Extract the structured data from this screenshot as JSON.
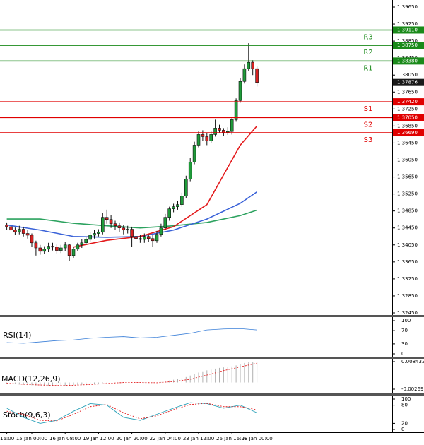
{
  "chart_data": {
    "type": "candlestick",
    "categories": [
      "16:00",
      null,
      null,
      null,
      null,
      null,
      "15 Jan 00:00",
      null,
      null,
      null,
      null,
      null,
      null,
      null,
      "16 Jan 08:00",
      null,
      null,
      null,
      null,
      null,
      null,
      null,
      "19 Jan 12:00",
      null,
      null,
      null,
      null,
      null,
      null,
      null,
      "20 Jan 20:00",
      null,
      null,
      null,
      null,
      null,
      null,
      null,
      "22 Jan 04:00",
      null,
      null,
      null,
      null,
      null,
      null,
      null,
      "23 Jan 12:00",
      null,
      null,
      null,
      null,
      null,
      null,
      null,
      "26 Jan 16:00",
      null,
      null,
      null,
      null,
      null,
      "28 Jan 00:00"
    ],
    "open": [
      1.3452,
      1.3448,
      1.344,
      1.3436,
      1.3442,
      1.3432,
      1.3428,
      1.341,
      1.3398,
      1.339,
      1.3395,
      1.3402,
      1.34,
      1.3392,
      1.3398,
      1.3405,
      1.338,
      1.3395,
      1.3405,
      1.341,
      1.3418,
      1.3428,
      1.3432,
      1.3435,
      1.347,
      1.3465,
      1.3455,
      1.345,
      1.3445,
      1.344,
      1.3442,
      1.3425,
      1.342,
      1.3418,
      1.3425,
      1.342,
      1.3415,
      1.343,
      1.3445,
      1.347,
      1.349,
      1.3495,
      1.35,
      1.352,
      1.356,
      1.36,
      1.364,
      1.3665,
      1.366,
      1.365,
      1.3665,
      1.368,
      1.3675,
      1.367,
      1.3672,
      1.37,
      1.3745,
      1.379,
      1.382,
      1.3835,
      1.382
    ],
    "high": [
      1.3458,
      1.3452,
      1.3446,
      1.345,
      1.3448,
      1.344,
      1.3432,
      1.3415,
      1.3405,
      1.3402,
      1.341,
      1.341,
      1.3406,
      1.3405,
      1.3412,
      1.3408,
      1.34,
      1.341,
      1.3418,
      1.3425,
      1.3435,
      1.344,
      1.3442,
      1.348,
      1.3488,
      1.3475,
      1.3462,
      1.3458,
      1.3452,
      1.345,
      1.3448,
      1.3432,
      1.3428,
      1.3432,
      1.343,
      1.3428,
      1.3438,
      1.3455,
      1.3478,
      1.3495,
      1.3502,
      1.3508,
      1.3528,
      1.3568,
      1.361,
      1.3648,
      1.3672,
      1.3675,
      1.3668,
      1.3672,
      1.37,
      1.3688,
      1.368,
      1.3682,
      1.3705,
      1.375,
      1.3798,
      1.383,
      1.388,
      1.384,
      1.3825
    ],
    "low": [
      1.344,
      1.3432,
      1.3428,
      1.343,
      1.3425,
      1.342,
      1.34,
      1.338,
      1.3382,
      1.3384,
      1.3388,
      1.3392,
      1.3385,
      1.3386,
      1.339,
      1.3368,
      1.3375,
      1.339,
      1.3398,
      1.3405,
      1.3412,
      1.342,
      1.3425,
      1.343,
      1.3455,
      1.3445,
      1.344,
      1.3436,
      1.343,
      1.3432,
      1.34,
      1.3405,
      1.341,
      1.341,
      1.3412,
      1.34,
      1.341,
      1.3425,
      1.344,
      1.3462,
      1.3482,
      1.3488,
      1.3495,
      1.3515,
      1.3555,
      1.3595,
      1.3635,
      1.365,
      1.364,
      1.3645,
      1.366,
      1.3668,
      1.3662,
      1.3664,
      1.3665,
      1.3695,
      1.374,
      1.3785,
      1.3815,
      1.3805,
      1.3778
    ],
    "close": [
      1.3448,
      1.344,
      1.3436,
      1.3442,
      1.3432,
      1.3428,
      1.341,
      1.3398,
      1.339,
      1.3395,
      1.3402,
      1.34,
      1.3392,
      1.3398,
      1.3405,
      1.338,
      1.3395,
      1.3405,
      1.341,
      1.3418,
      1.3428,
      1.3432,
      1.3435,
      1.347,
      1.3465,
      1.3455,
      1.345,
      1.3445,
      1.344,
      1.3442,
      1.3425,
      1.342,
      1.3418,
      1.3425,
      1.342,
      1.3415,
      1.343,
      1.3445,
      1.347,
      1.349,
      1.3495,
      1.35,
      1.352,
      1.356,
      1.36,
      1.364,
      1.3665,
      1.366,
      1.365,
      1.3665,
      1.368,
      1.3675,
      1.367,
      1.3672,
      1.37,
      1.3745,
      1.379,
      1.382,
      1.3835,
      1.382,
      1.37876
    ],
    "up_color": "#1f9c3a",
    "down_color": "#d62020",
    "ylim": [
      1.3245,
      1.3965
    ],
    "yticks": [
      {
        "value": 1.3965,
        "label": "1.39650"
      },
      {
        "value": 1.3925,
        "label": "1.39250"
      },
      {
        "value": 1.3885,
        "label": "1.38850"
      },
      {
        "value": 1.3845,
        "label": "1.38450"
      },
      {
        "value": 1.3805,
        "label": "1.38050"
      },
      {
        "value": 1.3765,
        "label": "1.37650"
      },
      {
        "value": 1.3725,
        "label": "1.37250"
      },
      {
        "value": 1.3685,
        "label": "1.36850"
      },
      {
        "value": 1.3645,
        "label": "1.36450"
      },
      {
        "value": 1.3605,
        "label": "1.36050"
      },
      {
        "value": 1.3565,
        "label": "1.35650"
      },
      {
        "value": 1.3525,
        "label": "1.35250"
      },
      {
        "value": 1.3485,
        "label": "1.34850"
      },
      {
        "value": 1.3445,
        "label": "1.34450"
      },
      {
        "value": 1.3405,
        "label": "1.34050"
      },
      {
        "value": 1.3365,
        "label": "1.33650"
      },
      {
        "value": 1.3325,
        "label": "1.33250"
      },
      {
        "value": 1.3285,
        "label": "1.32850"
      },
      {
        "value": 1.3245,
        "label": "1.32450"
      }
    ],
    "levels": [
      {
        "name": "R3",
        "value": {
          "value": 1.3911,
          "label": "1.39110"
        },
        "color": "#1a8a1a"
      },
      {
        "name": "R2",
        "value": {
          "value": 1.3875,
          "label": "1.38750"
        },
        "color": "#1a8a1a"
      },
      {
        "name": "R1",
        "value": {
          "value": 1.3838,
          "label": "1.38380"
        },
        "color": "#1a8a1a"
      },
      {
        "name": "S1",
        "value": {
          "value": 1.3742,
          "label": "1.37420"
        },
        "color": "#e00000"
      },
      {
        "name": "S2",
        "value": {
          "value": 1.3705,
          "label": "1.37050"
        },
        "color": "#e00000"
      },
      {
        "name": "S3",
        "value": {
          "value": 1.3669,
          "label": "1.36690"
        },
        "color": "#e00000"
      }
    ],
    "last_price": {
      "value": 1.37876,
      "label": "1.37876"
    },
    "moving_averages": [
      {
        "color": "#2ca25f",
        "x": [
          0,
          8,
          16,
          24,
          32,
          40,
          48,
          56,
          60
        ],
        "values": [
          1.3466,
          1.3466,
          1.3456,
          1.345,
          1.3445,
          1.345,
          1.3458,
          1.3474,
          1.3487
        ]
      },
      {
        "color": "#3a62d8",
        "x": [
          0,
          8,
          16,
          24,
          32,
          40,
          48,
          56,
          60
        ],
        "values": [
          1.3452,
          1.344,
          1.3425,
          1.3423,
          1.3425,
          1.344,
          1.3466,
          1.3503,
          1.353
        ]
      },
      {
        "color": "#e31a1c",
        "x": [
          0,
          8,
          16,
          24,
          32,
          40,
          48,
          56,
          60
        ],
        "values": [
          null,
          null,
          1.34,
          1.3416,
          1.3425,
          1.3448,
          1.35,
          1.364,
          1.3685
        ]
      }
    ],
    "rsi": {
      "title": "RSI(14)",
      "ylim": [
        0,
        100
      ],
      "yticks": [
        100,
        70,
        30,
        0
      ],
      "color": "#3a7fd8",
      "x": [
        0,
        4,
        8,
        12,
        16,
        20,
        24,
        28,
        32,
        36,
        40,
        44,
        48,
        52,
        56,
        60
      ],
      "values": [
        34,
        32,
        36,
        40,
        42,
        47,
        50,
        52,
        48,
        50,
        56,
        62,
        72,
        75,
        76,
        72
      ]
    },
    "macd": {
      "title": "MACD(12,26,9)",
      "ylim": [
        -0.002697,
        0.008432
      ],
      "yticks": [
        0.008432,
        -0.002697
      ],
      "color": "#b0b0b0",
      "histogram": [
        -0.0005,
        -0.0006,
        -0.0007,
        -0.0008,
        -0.0009,
        -0.001,
        -0.0011,
        -0.0012,
        -0.0012,
        -0.0013,
        -0.0013,
        -0.0013,
        -0.0013,
        -0.0014,
        -0.0013,
        -0.0012,
        -0.0011,
        -0.001,
        -0.0009,
        -0.0008,
        -0.0006,
        -0.0005,
        -0.0004,
        -0.0002,
        -0.0001,
        0.0,
        0.0001,
        0.0001,
        0.0001,
        0.0,
        0.0,
        -0.0001,
        -0.0001,
        -0.0001,
        -0.0001,
        -0.0001,
        0.0,
        0.0002,
        0.0005,
        0.0008,
        0.0011,
        0.0014,
        0.0017,
        0.0022,
        0.0028,
        0.0034,
        0.004,
        0.0045,
        0.0049,
        0.0052,
        0.0056,
        0.0059,
        0.0061,
        0.0063,
        0.0065,
        0.0069,
        0.0074,
        0.0079,
        0.0083,
        0.0084,
        0.0084
      ],
      "signal": {
        "color": "#e31a1c",
        "x": [
          0,
          4,
          8,
          12,
          16,
          20,
          24,
          28,
          32,
          36,
          40,
          44,
          48,
          52,
          56,
          60
        ],
        "values": [
          -0.0003,
          -0.0007,
          -0.001,
          -0.0012,
          -0.0011,
          -0.0008,
          -0.0004,
          0.0,
          0.0,
          -0.0001,
          0.0004,
          0.0013,
          0.003,
          0.0048,
          0.0063,
          0.0078
        ]
      }
    },
    "stoch": {
      "title": "Stoch(9,6,3)",
      "ylim": [
        0,
        100
      ],
      "yticks": [
        100,
        80,
        20,
        0
      ],
      "series": [
        {
          "color": "#2aa0b8",
          "dash": false,
          "x": [
            0,
            4,
            8,
            12,
            16,
            20,
            24,
            28,
            32,
            36,
            40,
            44,
            48,
            52,
            56,
            60
          ],
          "values": [
            70,
            40,
            20,
            30,
            60,
            85,
            80,
            40,
            30,
            50,
            70,
            88,
            85,
            70,
            80,
            55
          ]
        },
        {
          "color": "#e31a1c",
          "dash": true,
          "x": [
            0,
            4,
            8,
            12,
            16,
            20,
            24,
            28,
            32,
            36,
            40,
            44,
            48,
            52,
            56,
            60
          ],
          "values": [
            60,
            50,
            30,
            28,
            50,
            75,
            82,
            55,
            35,
            45,
            65,
            82,
            86,
            75,
            75,
            65
          ]
        }
      ]
    }
  }
}
